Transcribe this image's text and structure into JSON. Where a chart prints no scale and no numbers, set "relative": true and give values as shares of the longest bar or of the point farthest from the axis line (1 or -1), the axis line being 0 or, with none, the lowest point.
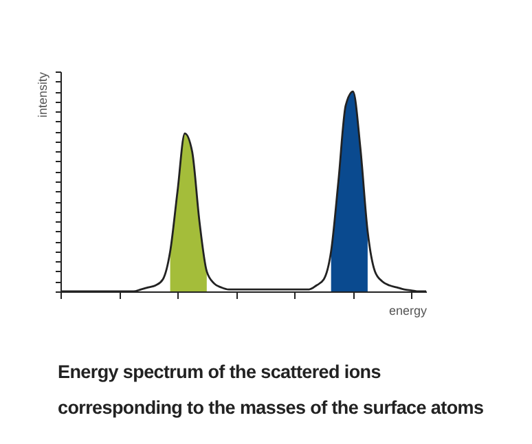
{
  "chart_data": {
    "type": "line",
    "relative": true,
    "title": "Energy spectrum of the scattered ions corresponding to the masses of the surface atoms",
    "xlabel": "energy",
    "ylabel": "intensity",
    "grid": false,
    "tick_labels": false,
    "marker": "none",
    "line_style": "solid",
    "categories": [
      null,
      null,
      null,
      null,
      null,
      null,
      null,
      null,
      null,
      null,
      null,
      null,
      null,
      null,
      null,
      null,
      null,
      null,
      null,
      null,
      null,
      null,
      null,
      null,
      null,
      null,
      null,
      null,
      null,
      null,
      null,
      null,
      null,
      null,
      null,
      null,
      null,
      null,
      null,
      null,
      null,
      null,
      null,
      null,
      null,
      null,
      null,
      null,
      null,
      null,
      null
    ],
    "series": [
      {
        "type": "area",
        "color": "#a4bd3a",
        "values": [
          null,
          null,
          null,
          null,
          null,
          null,
          null,
          null,
          null,
          null,
          null,
          null,
          null,
          null,
          null,
          0.2,
          0.5,
          0.79,
          0.7,
          0.35,
          0.1,
          null,
          null,
          null,
          null,
          null,
          null,
          null,
          null,
          null,
          null,
          null,
          null,
          null,
          null,
          null,
          null,
          null,
          null,
          null,
          null,
          null,
          null,
          null,
          null,
          null,
          null,
          null,
          null,
          null,
          null
        ]
      },
      {
        "type": "area",
        "color": "#0a4a8f",
        "values": [
          null,
          null,
          null,
          null,
          null,
          null,
          null,
          null,
          null,
          null,
          null,
          null,
          null,
          null,
          null,
          null,
          null,
          null,
          null,
          null,
          null,
          null,
          null,
          null,
          null,
          null,
          null,
          null,
          null,
          null,
          null,
          null,
          null,
          null,
          null,
          null,
          null,
          0.2,
          0.55,
          0.93,
          1,
          0.72,
          0.3,
          null,
          null,
          null,
          null,
          null,
          null,
          null,
          null
        ]
      },
      {
        "color": "#222222",
        "values": [
          0,
          0,
          0,
          0,
          0,
          0,
          0,
          0,
          0,
          0,
          0,
          0.01,
          0.02,
          0.03,
          0.06,
          0.2,
          0.5,
          0.79,
          0.7,
          0.35,
          0.1,
          0.04,
          0.02,
          0.01,
          0.01,
          0.01,
          0.01,
          0.01,
          0.01,
          0.01,
          0.01,
          0.01,
          0.01,
          0.01,
          0.01,
          0.03,
          0.06,
          0.2,
          0.55,
          0.93,
          1,
          0.72,
          0.3,
          0.1,
          0.05,
          0.03,
          0.02,
          0.01,
          0.005,
          0,
          0
        ]
      }
    ]
  }
}
